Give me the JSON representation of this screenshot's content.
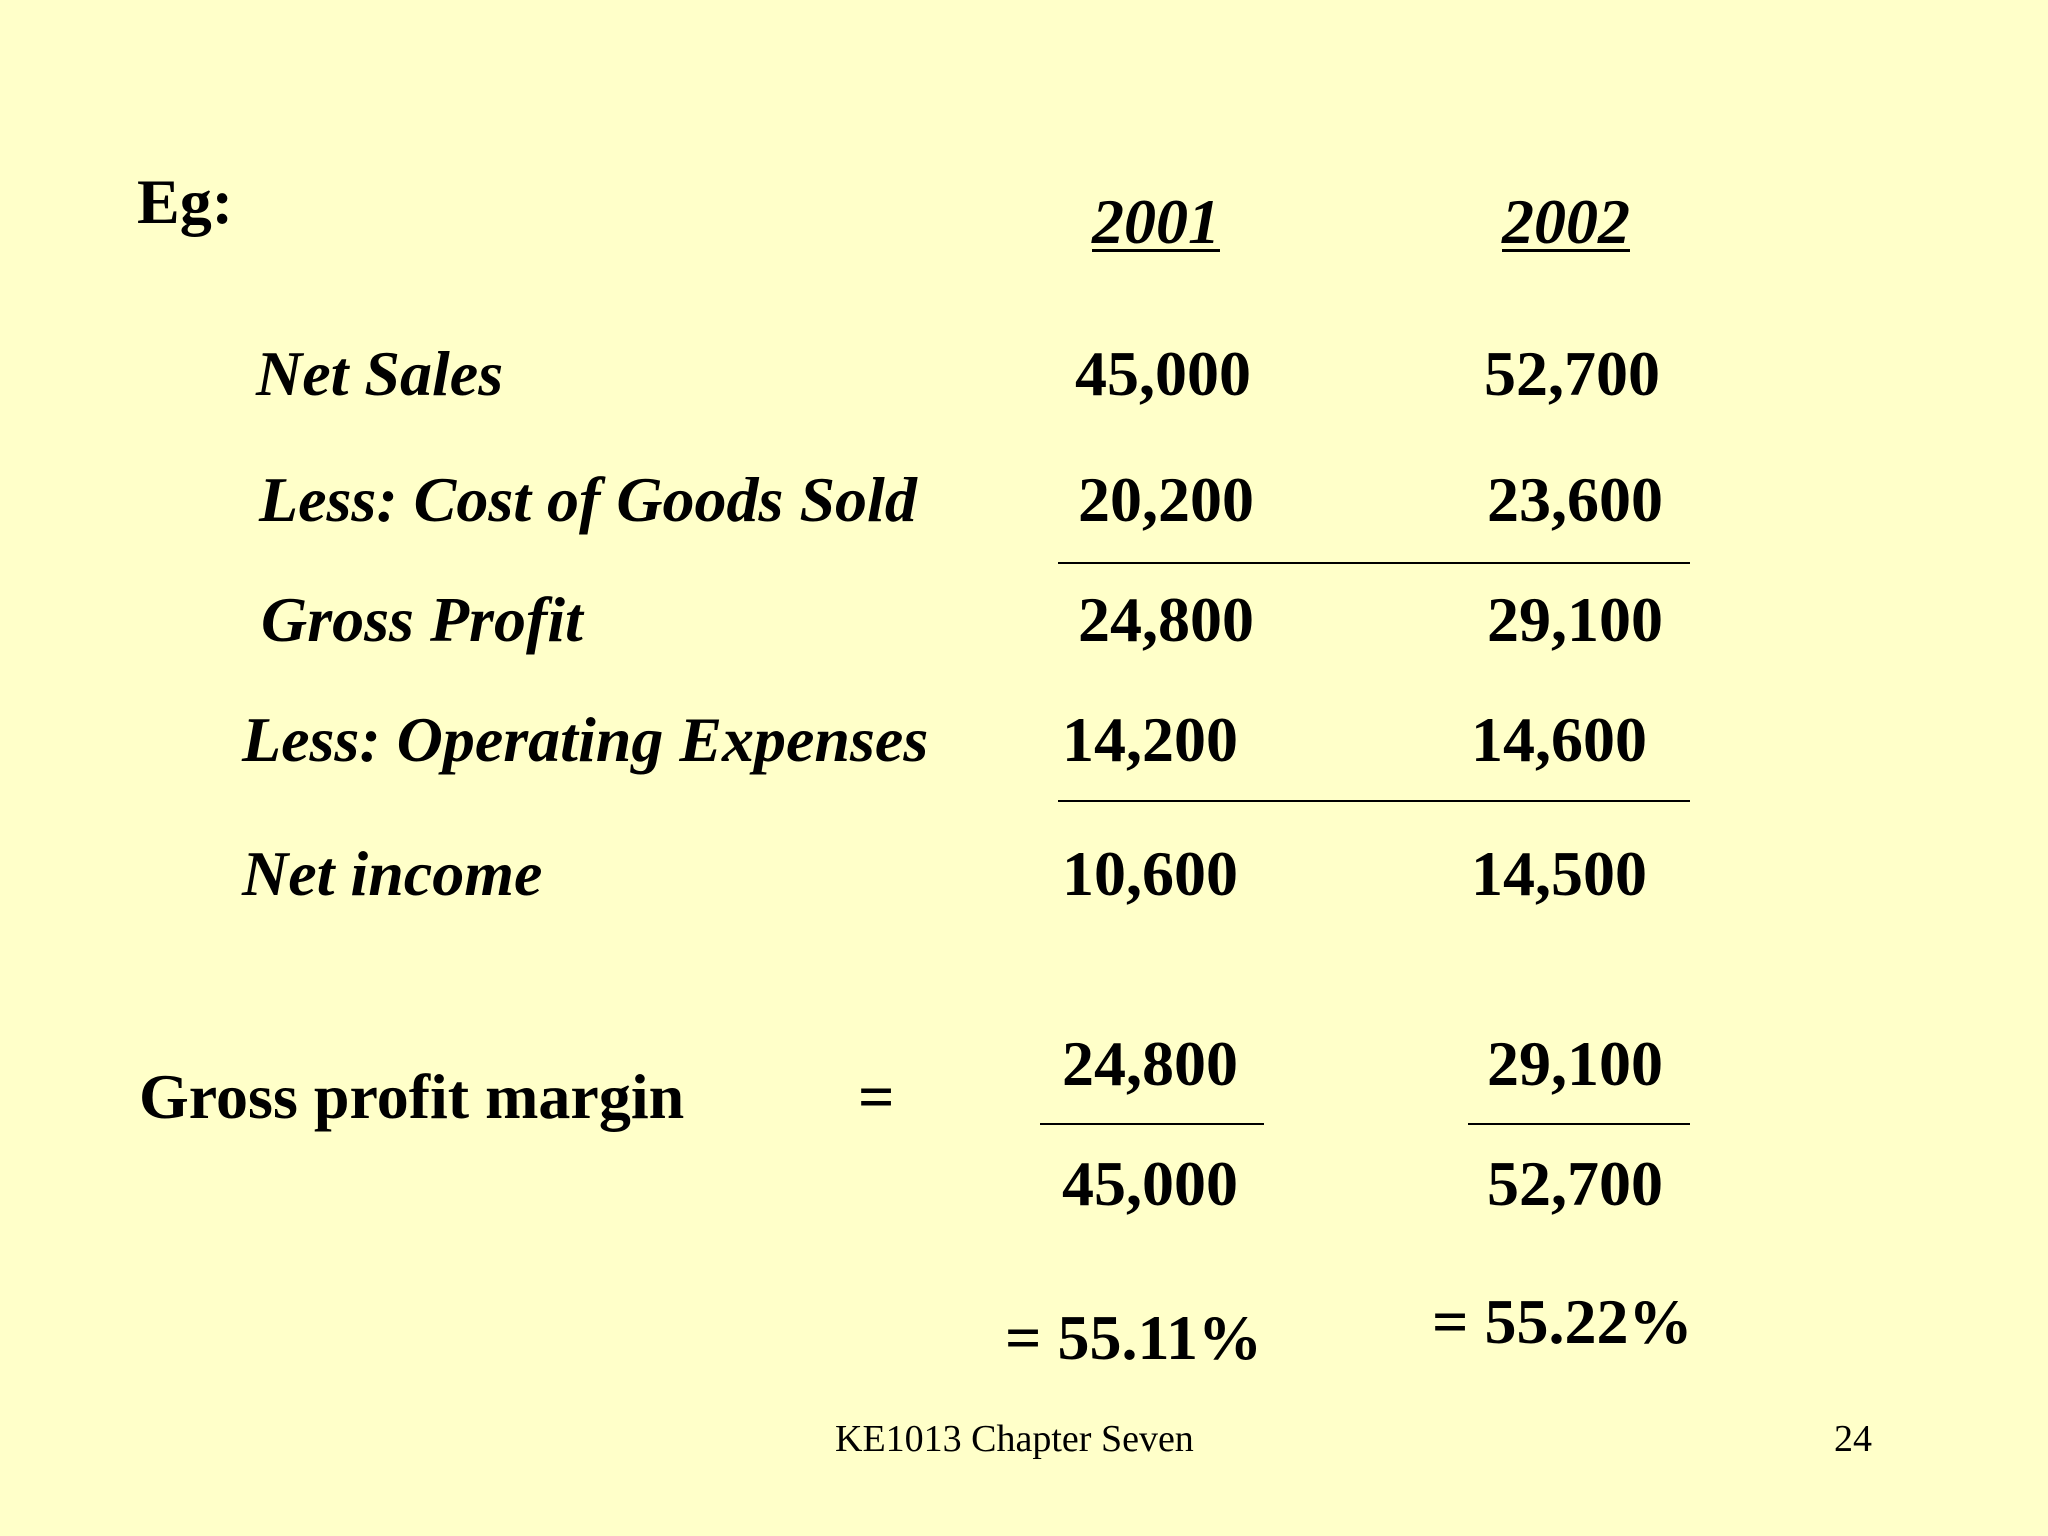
{
  "slide": {
    "eg_label": "Eg:",
    "columns": {
      "year1": "2001",
      "year2": "2002"
    },
    "rows": [
      {
        "label": "Net Sales",
        "v2001": "45,000",
        "v2002": "52,700"
      },
      {
        "label": "Less: Cost of Goods Sold",
        "v2001": "20,200",
        "v2002": "23,600"
      },
      {
        "label": "Gross Profit",
        "v2001": "24,800",
        "v2002": "29,100"
      },
      {
        "label": "Less: Operating Expenses",
        "v2001": "14,200",
        "v2002": "14,600"
      },
      {
        "label": "Net income",
        "v2001": "10,600",
        "v2002": "14,500"
      }
    ],
    "ratio": {
      "label": "Gross profit margin",
      "equals": "=",
      "num2001": "24,800",
      "den2001": "45,000",
      "num2002": "29,100",
      "den2002": "52,700",
      "result2001": "=  55.11%",
      "result2002": "=  55.22%"
    },
    "footer": {
      "course": "KE1013 Chapter Seven",
      "page": "24"
    }
  },
  "colors": {
    "background": "#ffffc9",
    "text": "#000000"
  }
}
